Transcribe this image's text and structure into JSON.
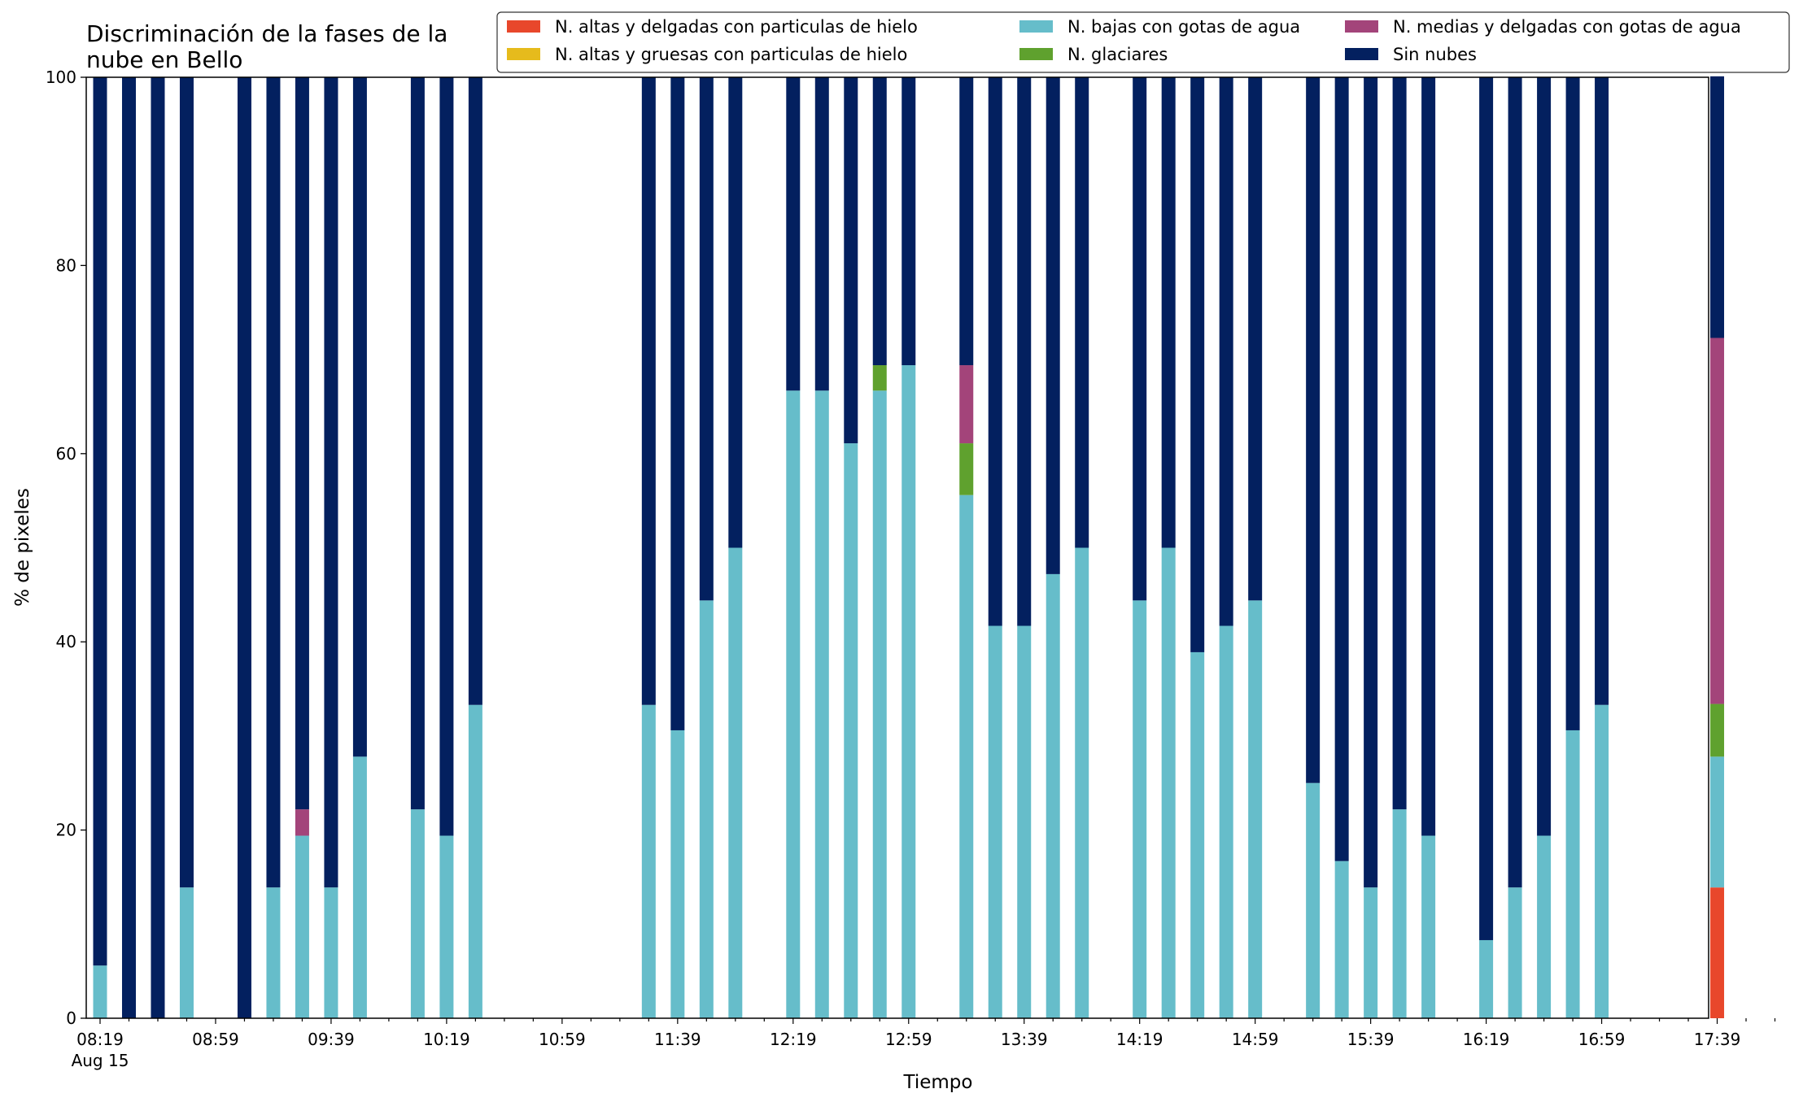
{
  "chart_data": {
    "type": "bar",
    "stacked": true,
    "title_lines": [
      "Discriminación de la fases de la",
      "nube en Bello"
    ],
    "xlabel": "Tiempo",
    "ylabel": "% de pixeles",
    "ylim": [
      0,
      100
    ],
    "yticks": [
      0,
      20,
      40,
      60,
      80,
      100
    ],
    "x_start_time": "08:19",
    "x_interval_minutes": 10,
    "x_end_time": "17:59",
    "xtick_labels": [
      "08:19",
      "08:59",
      "09:39",
      "10:19",
      "10:59",
      "11:39",
      "12:19",
      "12:59",
      "13:39",
      "14:19",
      "14:59",
      "15:39",
      "16:19",
      "16:59",
      "17:39"
    ],
    "xtick_sublabel": "Aug 15",
    "grid": false,
    "legend_position": "top-right",
    "categories": [
      "08:19",
      "08:29",
      "08:39",
      "08:49",
      "08:59",
      "09:09",
      "09:19",
      "09:29",
      "09:39",
      "09:49",
      "09:59",
      "10:09",
      "10:19",
      "10:29",
      "10:39",
      "10:49",
      "10:59",
      "11:09",
      "11:19",
      "11:29",
      "11:39",
      "11:49",
      "11:59",
      "12:09",
      "12:19",
      "12:29",
      "12:39",
      "12:49",
      "12:59",
      "13:09",
      "13:19",
      "13:29",
      "13:39",
      "13:49",
      "13:59",
      "14:09",
      "14:19",
      "14:29",
      "14:39",
      "14:49",
      "14:59",
      "15:09",
      "15:19",
      "15:29",
      "15:39",
      "15:49",
      "15:59",
      "16:09",
      "16:19",
      "16:29",
      "16:39",
      "16:49",
      "16:59",
      "17:09",
      "17:19",
      "17:29",
      "17:39",
      "17:49",
      "17:59"
    ],
    "series": [
      {
        "name": "N. altas y delgadas con particulas de hielo",
        "color": "#e8472b",
        "values": [
          0,
          0,
          0,
          0,
          null,
          0,
          0,
          0,
          0,
          0,
          null,
          0,
          0,
          0,
          null,
          null,
          null,
          null,
          null,
          0,
          0,
          0,
          0,
          null,
          0,
          0,
          0,
          0,
          0,
          null,
          0,
          0,
          0,
          0,
          0,
          null,
          0,
          0,
          0,
          0,
          0,
          null,
          0,
          0,
          0,
          0,
          0,
          null,
          0,
          0,
          0,
          0,
          0,
          null,
          null,
          null,
          13.9,
          null,
          null
        ]
      },
      {
        "name": "N. altas y gruesas con particulas de hielo",
        "color": "#e6bb1c",
        "values": [
          0,
          0,
          0,
          0,
          null,
          0,
          0,
          0,
          0,
          0,
          null,
          0,
          0,
          0,
          null,
          null,
          null,
          null,
          null,
          0,
          0,
          0,
          0,
          null,
          0,
          0,
          0,
          0,
          0,
          null,
          0,
          0,
          0,
          0,
          0,
          null,
          0,
          0,
          0,
          0,
          0,
          null,
          0,
          0,
          0,
          0,
          0,
          null,
          0,
          0,
          0,
          0,
          0,
          null,
          null,
          null,
          0,
          null,
          null
        ]
      },
      {
        "name": "N. bajas con gotas de agua",
        "color": "#66bdca",
        "values": [
          5.6,
          0,
          0,
          13.9,
          null,
          0,
          13.9,
          19.4,
          13.9,
          27.8,
          null,
          22.2,
          19.4,
          33.3,
          null,
          null,
          null,
          null,
          null,
          33.3,
          30.6,
          44.4,
          50.0,
          null,
          66.7,
          66.7,
          61.1,
          66.7,
          69.4,
          null,
          55.6,
          41.7,
          41.7,
          47.2,
          50.0,
          null,
          44.4,
          50.0,
          38.9,
          41.7,
          44.4,
          null,
          25.0,
          16.7,
          13.9,
          22.2,
          19.4,
          null,
          8.3,
          13.9,
          19.4,
          30.6,
          33.3,
          null,
          null,
          null,
          13.9,
          null,
          null
        ]
      },
      {
        "name": "N. glaciares",
        "color": "#5fa12e",
        "values": [
          0,
          0,
          0,
          0,
          null,
          0,
          0,
          0,
          0,
          0,
          null,
          0,
          0,
          0,
          null,
          null,
          null,
          null,
          null,
          0,
          0,
          0,
          0,
          null,
          0,
          0,
          0,
          2.7,
          0,
          null,
          5.5,
          0,
          0,
          0,
          0,
          null,
          0,
          0,
          0,
          0,
          0,
          null,
          0,
          0,
          0,
          0,
          0,
          null,
          0,
          0,
          0,
          0,
          0,
          null,
          null,
          null,
          5.6,
          null,
          null
        ]
      },
      {
        "name": "N. medias y delgadas con gotas de agua",
        "color": "#a3447a",
        "values": [
          0,
          0,
          0,
          0,
          null,
          0,
          0,
          2.8,
          0,
          0,
          null,
          0,
          0,
          0,
          null,
          null,
          null,
          null,
          null,
          0,
          0,
          0,
          0,
          null,
          0,
          0,
          0,
          0,
          0,
          null,
          8.3,
          0,
          0,
          0,
          0,
          null,
          0,
          0,
          0,
          0,
          0,
          null,
          0,
          0,
          0,
          0,
          0,
          null,
          0,
          0,
          0,
          0,
          0,
          null,
          null,
          null,
          38.9,
          null,
          null
        ]
      },
      {
        "name": "Sin nubes",
        "color": "#03205f",
        "values": [
          94.4,
          100,
          100,
          86.1,
          null,
          100,
          86.1,
          77.8,
          86.1,
          72.2,
          null,
          77.8,
          80.6,
          66.7,
          null,
          null,
          null,
          null,
          null,
          66.7,
          69.4,
          55.6,
          50.0,
          null,
          33.3,
          33.3,
          38.9,
          30.6,
          30.6,
          null,
          30.6,
          58.3,
          58.3,
          52.8,
          50.0,
          null,
          55.6,
          50.0,
          61.1,
          58.3,
          55.6,
          null,
          75.0,
          83.3,
          86.1,
          77.8,
          80.6,
          null,
          91.7,
          86.1,
          80.6,
          69.4,
          66.7,
          null,
          null,
          null,
          27.8,
          null,
          null
        ]
      }
    ]
  }
}
